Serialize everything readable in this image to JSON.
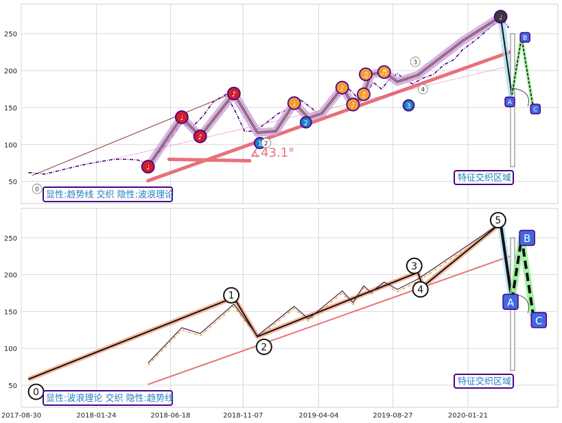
{
  "colors": {
    "price_top": "#4b0082",
    "price_bottom": "#e8a33c",
    "trend": "#e8707a",
    "wave_black": "#111111",
    "wave_halo": "#c9a0dc",
    "wave_halo_bottom": "#f3a98a",
    "abc_green": "#90ee90",
    "abc_blue": "#4169e1",
    "box_border": "#4b0082",
    "box_text": "#1f7fbf"
  },
  "chart_data": [
    {
      "type": "line",
      "panel": "top",
      "xlabel": "",
      "ylabel": "",
      "xlim": [
        "2017-08-30",
        "2020-07-15"
      ],
      "ylim": [
        20,
        290
      ],
      "yticks": [
        50,
        100,
        150,
        200,
        250
      ],
      "grid": true,
      "annotation_box": "显性:趋势线 交织 隐性:波浪理论",
      "region_label": "特征交织区域",
      "angle_label": "∡43.1°",
      "price_series": {
        "x": [
          "2017-09-13",
          "2017-10-15",
          "2017-11-20",
          "2017-12-25",
          "2018-01-24",
          "2018-02-28",
          "2018-03-28",
          "2018-04-15",
          "2018-05-05",
          "2018-05-25",
          "2018-06-20",
          "2018-07-10",
          "2018-07-28",
          "2018-08-20",
          "2018-09-10",
          "2018-10-05",
          "2018-10-25",
          "2018-11-10",
          "2018-11-30",
          "2018-12-20",
          "2019-01-15",
          "2019-02-05",
          "2019-02-28",
          "2019-03-20",
          "2019-04-04",
          "2019-04-20",
          "2019-05-10",
          "2019-05-25",
          "2019-06-10",
          "2019-06-25",
          "2019-07-05",
          "2019-07-20",
          "2019-08-05",
          "2019-08-20",
          "2019-09-05",
          "2019-09-20",
          "2019-10-05",
          "2019-10-25",
          "2019-11-15",
          "2019-12-05",
          "2019-12-25",
          "2020-01-10",
          "2020-01-30",
          "2020-02-20",
          "2020-03-10",
          "2020-03-28",
          "2020-04-10"
        ],
        "y": [
          62,
          60,
          66,
          72,
          76,
          80,
          80,
          79,
          74,
          88,
          110,
          130,
          122,
          138,
          158,
          168,
          142,
          118,
          118,
          128,
          142,
          148,
          160,
          150,
          140,
          150,
          168,
          180,
          170,
          158,
          168,
          184,
          175,
          188,
          196,
          188,
          182,
          190,
          195,
          208,
          215,
          228,
          238,
          250,
          262,
          270,
          258
        ]
      },
      "trend_lines": [
        {
          "x": [
            "2018-05-05",
            "2020-04-12"
          ],
          "y": [
            51,
            225
          ]
        },
        {
          "x": [
            "2017-09-20",
            "2018-10-20"
          ],
          "y": [
            58,
            170
          ]
        },
        {
          "x": [
            "2018-06-15",
            "2018-11-20"
          ],
          "y": [
            80,
            78
          ]
        },
        {
          "x": [
            "2018-02-25",
            "2020-04-05"
          ],
          "y": [
            80,
            205
          ]
        }
      ],
      "wave": {
        "x": [
          "2018-05-05",
          "2018-07-10",
          "2018-08-15",
          "2018-10-20",
          "2018-12-05",
          "2019-01-10",
          "2019-02-15",
          "2019-03-15",
          "2019-04-10",
          "2019-05-20",
          "2019-06-10",
          "2019-07-01",
          "2019-07-15",
          "2019-08-10",
          "2019-09-05",
          "2019-10-15",
          "2020-01-10",
          "2020-03-25"
        ],
        "y": [
          70,
          137,
          111,
          169,
          116,
          118,
          156,
          136,
          142,
          177,
          154,
          168,
          195,
          198,
          185,
          194,
          240,
          273
        ]
      },
      "markers": [
        {
          "x": "2018-05-05",
          "y": 70,
          "symbol": "♩",
          "color": "#d0202a"
        },
        {
          "x": "2018-07-10",
          "y": 137,
          "symbol": "♩",
          "color": "#d0202a"
        },
        {
          "x": "2018-08-15",
          "y": 111,
          "symbol": "♪",
          "color": "#d0202a"
        },
        {
          "x": "2018-10-20",
          "y": 169,
          "symbol": "♪",
          "color": "#d0202a"
        },
        {
          "x": "2019-02-15",
          "y": 156,
          "symbol": "♩",
          "color": "#f39c34"
        },
        {
          "x": "2019-05-20",
          "y": 177,
          "symbol": "♪",
          "color": "#f39c34"
        },
        {
          "x": "2019-06-10",
          "y": 154,
          "symbol": "♪",
          "color": "#f39c34"
        },
        {
          "x": "2019-07-01",
          "y": 168,
          "symbol": "♫",
          "color": "#f39c34"
        },
        {
          "x": "2019-07-05",
          "y": 195,
          "symbol": "♫",
          "color": "#f39c34"
        },
        {
          "x": "2019-08-10",
          "y": 198,
          "symbol": "♬",
          "color": "#f39c34"
        },
        {
          "x": "2020-03-25",
          "y": 273,
          "symbol": "♩",
          "color": "#3a3a3a"
        }
      ],
      "wave_labels": [
        {
          "label": "0",
          "x": "2017-09-30",
          "y": 40,
          "style": "small"
        },
        {
          "label": "1",
          "x": "2018-12-10",
          "y": 102,
          "style": "blue"
        },
        {
          "label": "2",
          "x": "2018-12-22",
          "y": 102,
          "style": "small"
        },
        {
          "label": "2",
          "x": "2019-03-10",
          "y": 130,
          "style": "blue"
        },
        {
          "label": "3",
          "x": "2019-09-27",
          "y": 153,
          "style": "blue"
        },
        {
          "label": "3",
          "x": "2019-10-10",
          "y": 212,
          "style": "small"
        },
        {
          "label": "4",
          "x": "2019-10-25",
          "y": 175,
          "style": "small"
        }
      ],
      "abc": {
        "labels": [
          "A",
          "B",
          "C"
        ],
        "points": [
          {
            "x": "2020-04-08",
            "y": 167
          },
          {
            "x": "2020-05-05",
            "y": 245
          },
          {
            "x": "2020-05-28",
            "y": 148
          }
        ]
      }
    },
    {
      "type": "line",
      "panel": "bottom",
      "xlabel": "",
      "ylabel": "",
      "xlim": [
        "2017-08-30",
        "2020-07-15"
      ],
      "ylim": [
        20,
        290
      ],
      "xticks": [
        "2017-08-30",
        "2018-01-24",
        "2018-06-18",
        "2018-11-07",
        "2019-04-04",
        "2019-08-27",
        "2020-01-21"
      ],
      "yticks": [
        50,
        100,
        150,
        200,
        250
      ],
      "grid": true,
      "annotation_box": "显性:波浪理论 交织 隐性:趋势线",
      "region_label": "特征交织区域",
      "wave_main": {
        "x": [
          "2017-09-13",
          "2018-10-20",
          "2018-12-05",
          "2019-10-15",
          "2019-10-25",
          "2020-03-25"
        ],
        "y": [
          58,
          169,
          116,
          203,
          184,
          270
        ]
      },
      "wave_detail": {
        "x": [
          "2018-05-05",
          "2018-07-10",
          "2018-08-15",
          "2018-10-20",
          "2018-12-05",
          "2019-02-15",
          "2019-03-15",
          "2019-05-20",
          "2019-06-10",
          "2019-07-01",
          "2019-07-15",
          "2019-08-10",
          "2019-09-05",
          "2019-10-15",
          "2020-03-25"
        ],
        "y": [
          80,
          128,
          120,
          160,
          117,
          157,
          140,
          178,
          162,
          185,
          176,
          190,
          180,
          194,
          270
        ]
      },
      "trend_line": {
        "x": [
          "2018-05-05",
          "2020-04-12"
        ],
        "y": [
          51,
          225
        ]
      },
      "wave_labels": [
        {
          "label": "0",
          "x": "2017-09-28",
          "y": 41
        },
        {
          "label": "1",
          "x": "2018-10-15",
          "y": 172
        },
        {
          "label": "2",
          "x": "2018-12-18",
          "y": 102
        },
        {
          "label": "3",
          "x": "2019-10-08",
          "y": 212
        },
        {
          "label": "4",
          "x": "2019-10-20",
          "y": 180
        },
        {
          "label": "5",
          "x": "2020-03-20",
          "y": 274
        }
      ],
      "abc": {
        "labels": [
          "A",
          "B",
          "C"
        ],
        "points": [
          {
            "x": "2020-04-08",
            "y": 165
          },
          {
            "x": "2020-05-05",
            "y": 250
          },
          {
            "x": "2020-05-28",
            "y": 144
          }
        ]
      }
    }
  ]
}
